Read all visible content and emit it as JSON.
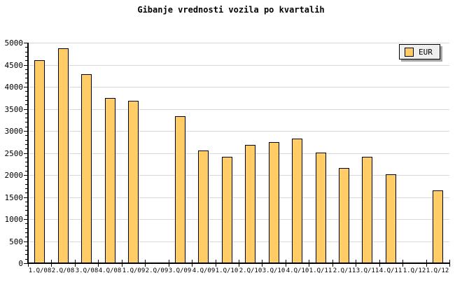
{
  "title": "Gibanje vrednosti vozila po kvartalih",
  "legend": {
    "label": "EUR",
    "swatch_color": "#ffcc66"
  },
  "colors": {
    "background": "#ffffff",
    "bar_fill": "#ffcc66",
    "bar_border": "#000000",
    "gridline": "#d9d9d9",
    "axis": "#000000",
    "text": "#000000",
    "legend_bg": "#efefef",
    "legend_shadow": "#a6a6a6"
  },
  "chart_data": {
    "type": "bar",
    "title": "Gibanje vrednosti vozila po kvartalih",
    "categories": [
      "1.Q/08",
      "2.Q/08",
      "3.Q/08",
      "4.Q/08",
      "1.Q/09",
      "2.Q/09",
      "3.Q/09",
      "4.Q/09",
      "1.Q/10",
      "2.Q/10",
      "3.Q/10",
      "4.Q/10",
      "1.Q/11",
      "2.Q/11",
      "3.Q/11",
      "4.Q/11",
      "1.Q/12",
      "1.Q/12"
    ],
    "series": [
      {
        "name": "EUR",
        "values": [
          4600,
          4870,
          4280,
          3750,
          3680,
          null,
          3340,
          2560,
          2410,
          2690,
          2750,
          2820,
          2510,
          2160,
          2420,
          2020,
          null,
          1650
        ]
      }
    ],
    "missing_categories": [
      "2.Q/09",
      "1.Q/12"
    ],
    "xlabel": "",
    "ylabel": "",
    "ylim": [
      0,
      5000
    ],
    "ytick_step": 500,
    "ytick_minor_step": 100,
    "grid": true,
    "legend_position": "top-right"
  }
}
